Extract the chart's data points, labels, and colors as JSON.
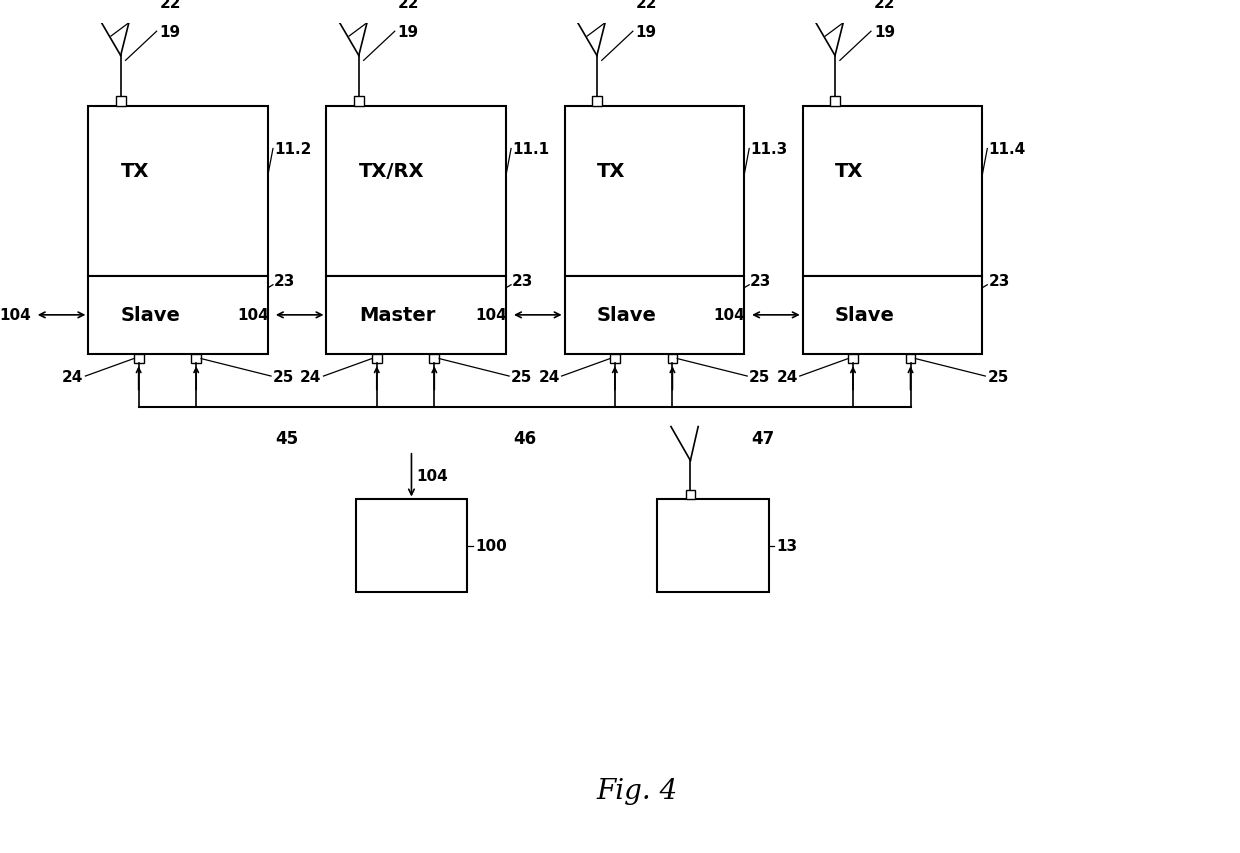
{
  "bg_color": "#ffffff",
  "fig_title": "Fig. 4",
  "units": [
    {
      "tx_label": "TX",
      "bot_label": "Slave",
      "id": "11.2"
    },
    {
      "tx_label": "TX/RX",
      "bot_label": "Master",
      "id": "11.1"
    },
    {
      "tx_label": "TX",
      "bot_label": "Slave",
      "id": "11.3"
    },
    {
      "tx_label": "TX",
      "bot_label": "Slave",
      "id": "11.4"
    }
  ],
  "bus_labels": [
    "45",
    "46",
    "47"
  ],
  "font_size_inner": 14,
  "font_size_num": 11,
  "font_size_title": 20
}
